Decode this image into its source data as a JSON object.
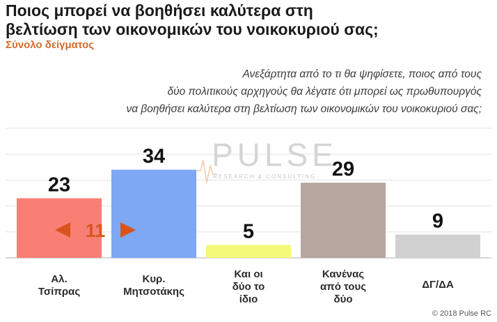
{
  "title_lines": [
    "Ποιος μπορεί να βοηθήσει καλύτερα στη",
    "βελτίωση των οικονομικών του νοικοκυριού σας;"
  ],
  "subtitle": "Σύνολο δείγματος",
  "question_lines": [
    "Ανεξάρτητα από το τι θα ψηφίσετε, ποιος από τους",
    "δύο πολιτικούς αρχηγούς θα λέγατε ότι μπορεί ως πρωθυπουργός",
    "να βοηθήσει καλύτερα στη βελτίωση των οικονομικών του νοικοκυριού σας;"
  ],
  "watermark": {
    "brand": "PULSE",
    "tagline": "RESEARCH & CONSULTING"
  },
  "copyright": "© 2018 Pulse RC",
  "chart_data": {
    "type": "bar",
    "categories": [
      [
        "Αλ.",
        "Τσίπρας"
      ],
      [
        "Κυρ.",
        "Μητσοτάκης"
      ],
      [
        "Και οι",
        "δύο το",
        "ίδιο"
      ],
      [
        "Κανένας",
        "από τους",
        "δύο"
      ],
      [
        "ΔΓ/ΔΑ"
      ]
    ],
    "values": [
      23,
      34,
      5,
      29,
      9
    ],
    "colors": [
      "#f97f75",
      "#7ea7f4",
      "#f5f97a",
      "#b8a6a0",
      "#d1d1d1"
    ],
    "ylim": [
      0,
      50
    ],
    "grid": true,
    "annotation": {
      "text": "11",
      "between": [
        0,
        1
      ],
      "value": 11,
      "color": "#d9541c"
    }
  }
}
